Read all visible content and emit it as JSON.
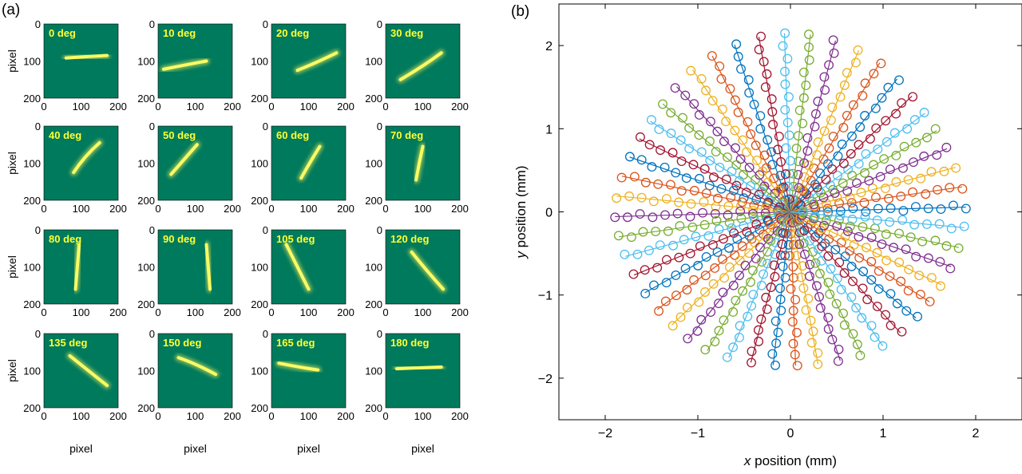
{
  "figure": {
    "panel_a": {
      "letter": "(a)",
      "y_title": "pixel",
      "x_title": "pixel",
      "y_ticks": [
        "0",
        "100",
        "200"
      ],
      "x_ticks": [
        "0",
        "100",
        "200"
      ],
      "frame_color": "#007a5c",
      "label_color": "#ffff33",
      "frames": [
        {
          "label": "0 deg",
          "angle": 0,
          "path": [
            [
              60,
              92
            ],
            [
              110,
              88
            ],
            [
              170,
              85
            ]
          ]
        },
        {
          "label": "10 deg",
          "angle": 10,
          "path": [
            [
              15,
              122
            ],
            [
              75,
              110
            ],
            [
              130,
              100
            ]
          ]
        },
        {
          "label": "20 deg",
          "angle": 20,
          "path": [
            [
              70,
              125
            ],
            [
              120,
              105
            ],
            [
              175,
              78
            ]
          ]
        },
        {
          "label": "30 deg",
          "angle": 30,
          "path": [
            [
              40,
              150
            ],
            [
              100,
              115
            ],
            [
              150,
              78
            ]
          ]
        },
        {
          "label": "40 deg",
          "angle": 40,
          "path": [
            [
              80,
              125
            ],
            [
              110,
              80
            ],
            [
              150,
              45
            ]
          ]
        },
        {
          "label": "50 deg",
          "angle": 50,
          "path": [
            [
              35,
              130
            ],
            [
              70,
              90
            ],
            [
              105,
              50
            ]
          ]
        },
        {
          "label": "60 deg",
          "angle": 60,
          "path": [
            [
              80,
              140
            ],
            [
              105,
              95
            ],
            [
              130,
              55
            ]
          ]
        },
        {
          "label": "70 deg",
          "angle": 70,
          "path": [
            [
              82,
              145
            ],
            [
              90,
              100
            ],
            [
              100,
              55
            ]
          ]
        },
        {
          "label": "80 deg",
          "angle": 80,
          "path": [
            [
              85,
              160
            ],
            [
              90,
              100
            ],
            [
              95,
              40
            ]
          ]
        },
        {
          "label": "90 deg",
          "angle": 90,
          "path": [
            [
              140,
              160
            ],
            [
              135,
              100
            ],
            [
              130,
              40
            ]
          ]
        },
        {
          "label": "105 deg",
          "angle": 105,
          "path": [
            [
              40,
              40
            ],
            [
              70,
              100
            ],
            [
              100,
              160
            ]
          ]
        },
        {
          "label": "120 deg",
          "angle": 120,
          "path": [
            [
              70,
              60
            ],
            [
              110,
              110
            ],
            [
              155,
              160
            ]
          ]
        },
        {
          "label": "135 deg",
          "angle": 135,
          "path": [
            [
              70,
              60
            ],
            [
              120,
              100
            ],
            [
              170,
              140
            ]
          ]
        },
        {
          "label": "150 deg",
          "angle": 150,
          "path": [
            [
              55,
              65
            ],
            [
              100,
              80
            ],
            [
              155,
              110
            ]
          ]
        },
        {
          "label": "165 deg",
          "angle": 165,
          "path": [
            [
              20,
              80
            ],
            [
              70,
              90
            ],
            [
              125,
              98
            ]
          ]
        },
        {
          "label": "180 deg",
          "angle": 180,
          "path": [
            [
              30,
              95
            ],
            [
              90,
              92
            ],
            [
              150,
              90
            ]
          ]
        }
      ]
    },
    "panel_b": {
      "letter": "(b)",
      "chart_data": {
        "type": "scatter",
        "title": "",
        "xlabel_var": "x",
        "xlabel_rest": " position (mm)",
        "ylabel_var": "y",
        "ylabel_rest": " position (mm)",
        "xlim": [
          -2.5,
          2.5
        ],
        "ylim": [
          -2.5,
          2.5
        ],
        "x_ticks": [
          -2,
          -1,
          0,
          1,
          2
        ],
        "y_ticks": [
          -2,
          -1,
          0,
          1,
          2
        ],
        "x_tick_labels": [
          "−2",
          "−1",
          "0",
          "1",
          "2"
        ],
        "y_tick_labels": [
          "−2",
          "−1",
          "0",
          "1",
          "2"
        ],
        "colors": [
          "#0072bd",
          "#d95319",
          "#edb120",
          "#7e2f8e",
          "#77ac30",
          "#4dbeee",
          "#a2142f"
        ],
        "num_rays": 48,
        "ray_radius_mm": 1.9,
        "ray_radius_top_mm": 2.2,
        "points_per_ray": 14
      }
    }
  }
}
